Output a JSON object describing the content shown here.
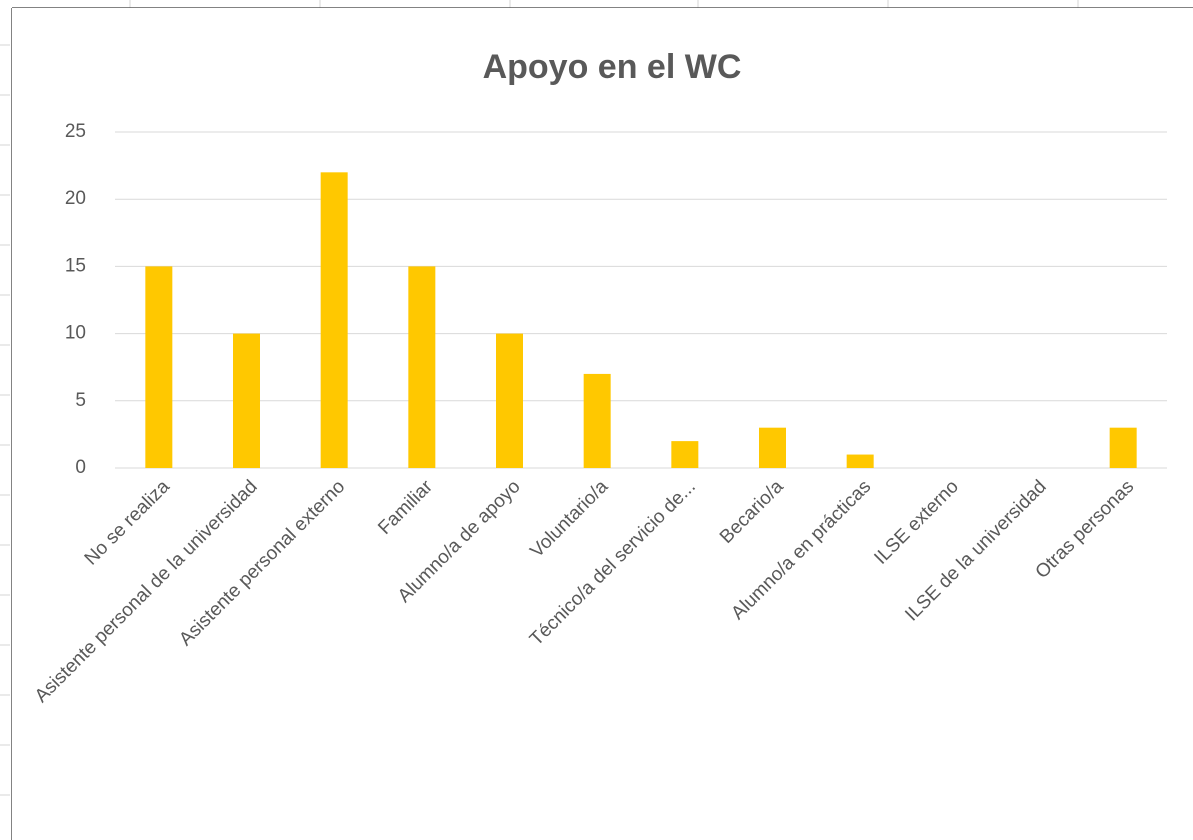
{
  "chart_data": {
    "type": "bar",
    "title": "Apoyo en el WC",
    "categories": [
      "No se realiza",
      "Asistente personal de la universidad",
      "Asistente personal externo",
      "Familiar",
      "Alumno/a de apoyo",
      "Voluntario/a",
      "Técnico/a del servicio de...",
      "Becario/a",
      "Alumno/a en prácticas",
      "ILSE externo",
      "ILSE de la universidad",
      "Otras personas"
    ],
    "values": [
      15,
      10,
      22,
      15,
      10,
      7,
      2,
      3,
      1,
      0,
      0,
      3
    ],
    "color": "#ffc800",
    "ylim": [
      0,
      25
    ],
    "yticks": [
      0,
      5,
      10,
      15,
      20,
      25
    ],
    "grid": true
  }
}
